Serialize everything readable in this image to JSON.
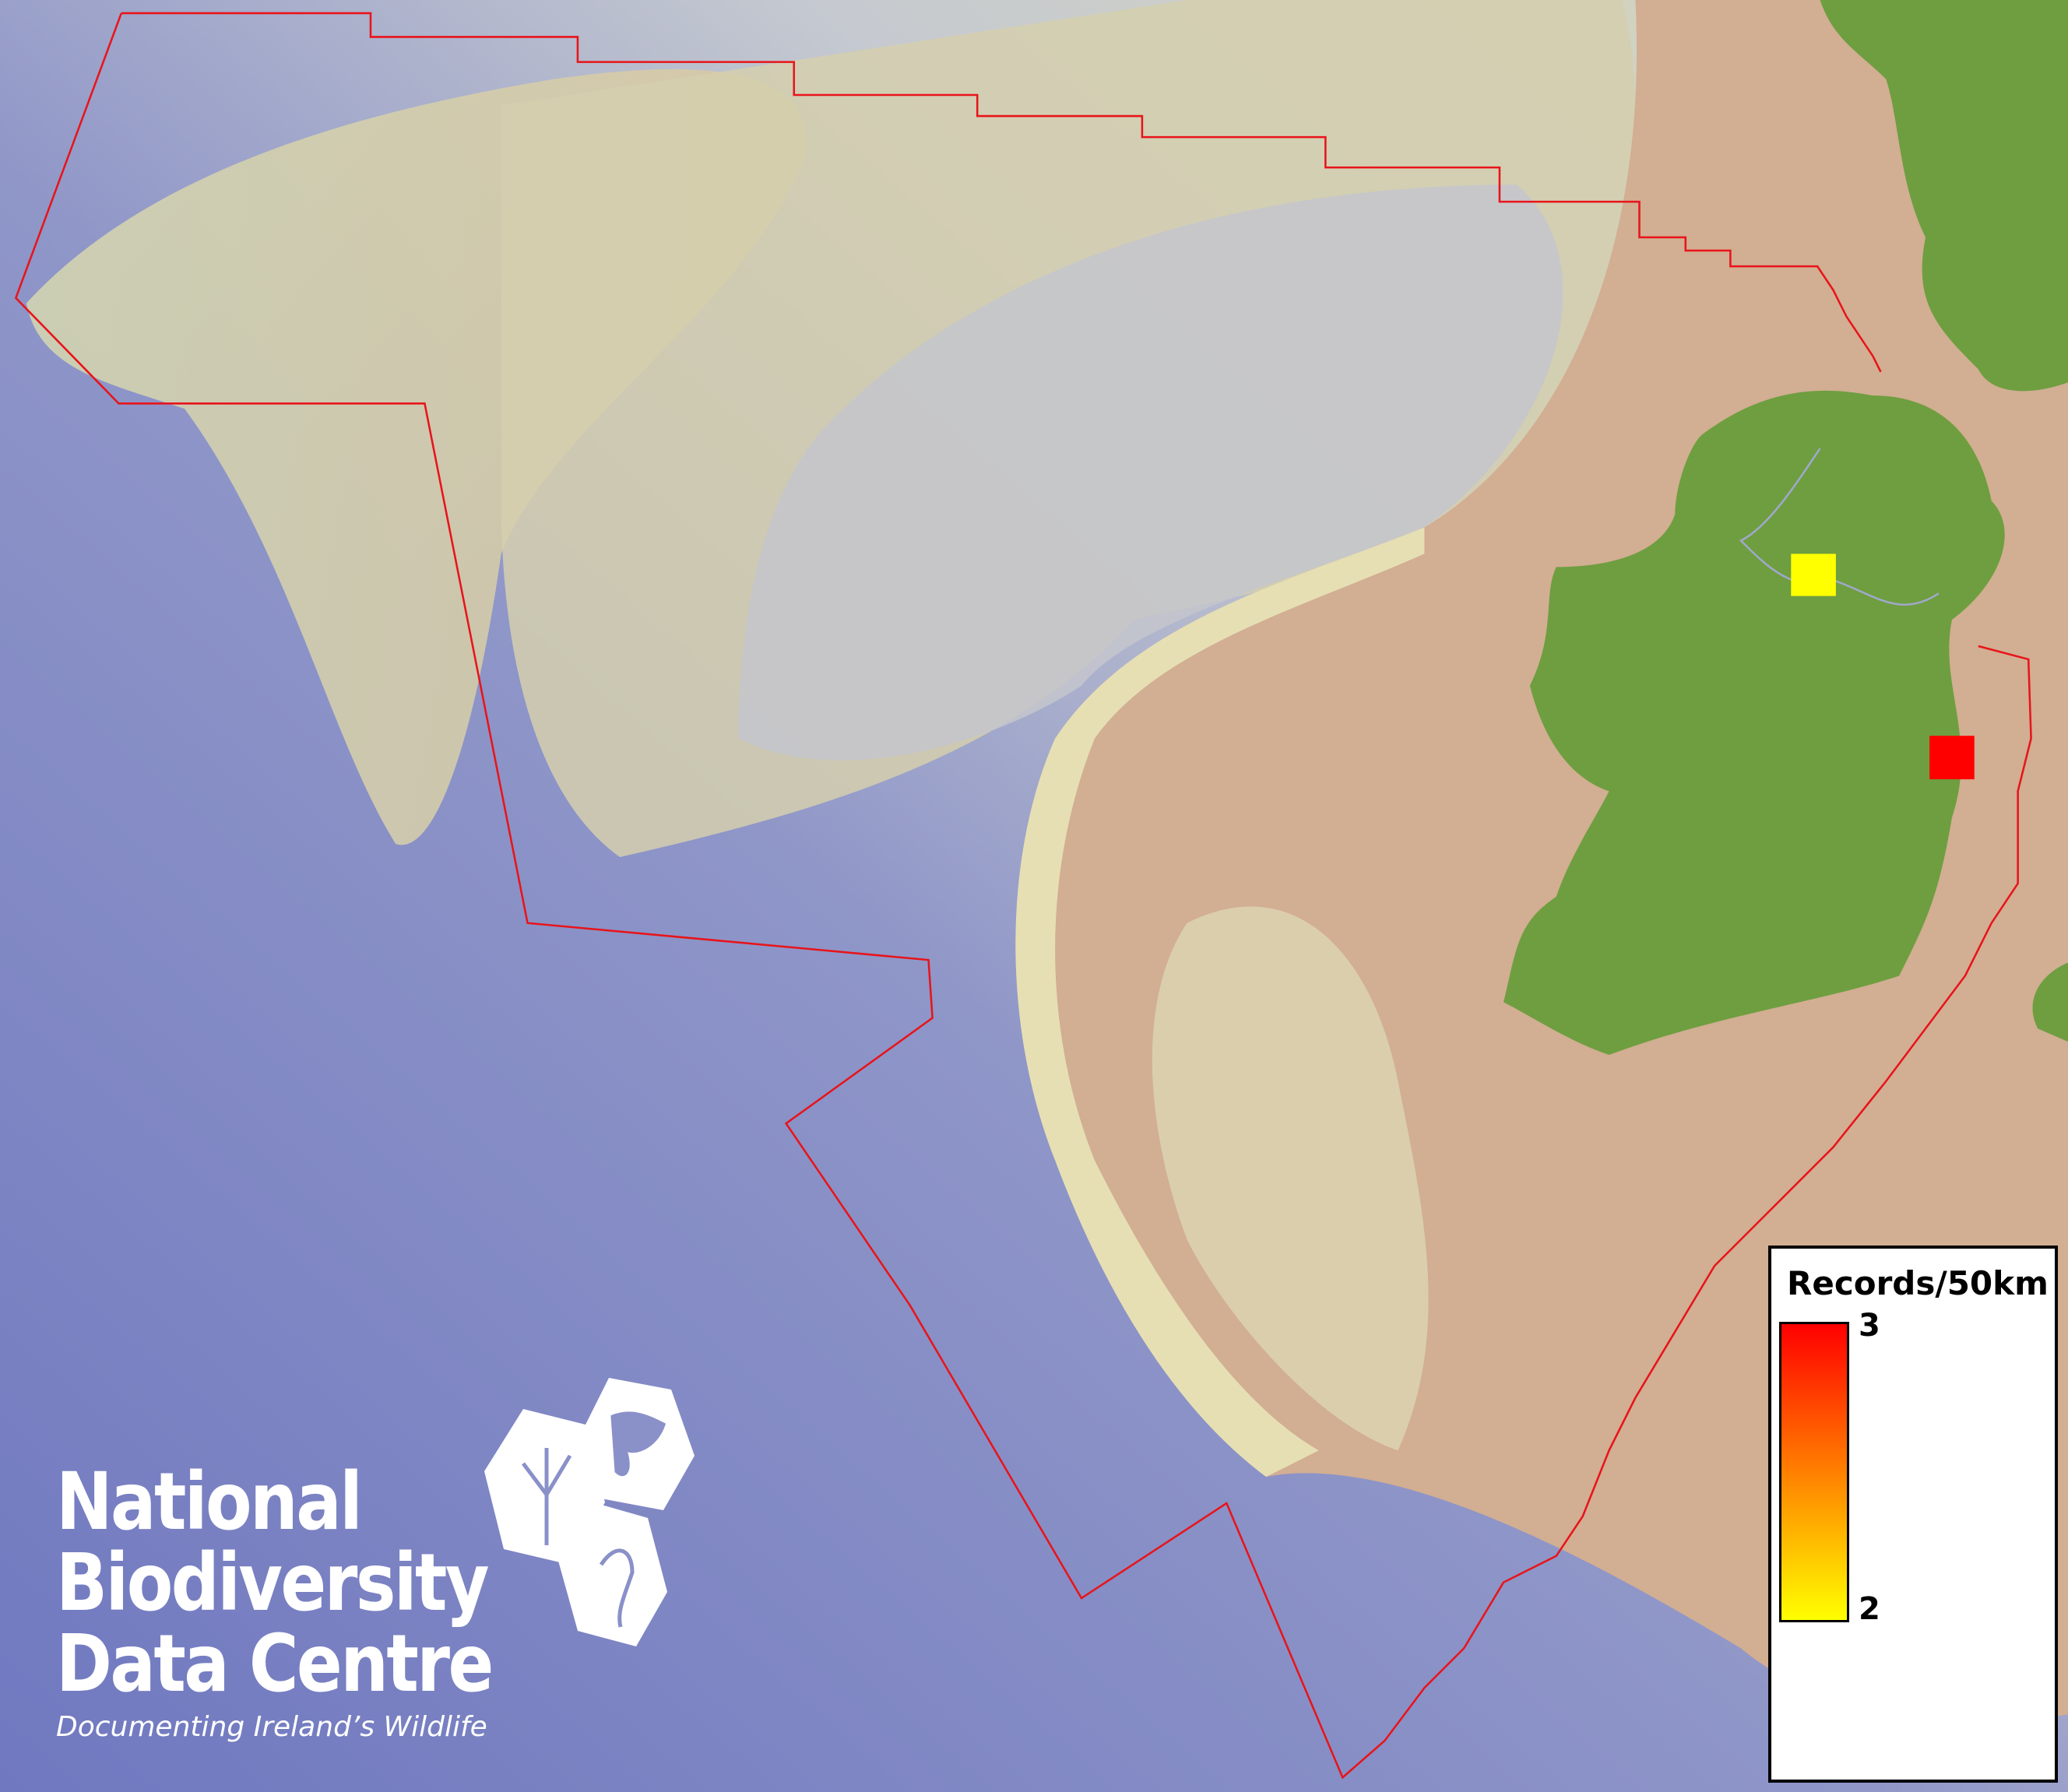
{
  "map": {
    "colors": {
      "deep_sea": "#7f86c4",
      "shelf": "#d8d9b0",
      "shallow": "#cfae92",
      "land": "#6e9e40",
      "boundary": "#e8141a"
    },
    "grid_cells": [
      {
        "value": 2,
        "color": "#ffff00"
      },
      {
        "value": 3,
        "color": "#ff0000"
      }
    ]
  },
  "legend": {
    "title": "Records/50km",
    "max_label": "3",
    "min_label": "2",
    "ramp_colors": [
      "#ff0000",
      "#ff8000",
      "#ffff00"
    ]
  },
  "logo": {
    "line1": "National",
    "line2": "Biodiversity",
    "line3": "Data Centre",
    "tagline": "Documenting Ireland’s Wildlife",
    "icons": [
      "tree-icon",
      "butterfly-icon",
      "seahorse-icon"
    ]
  }
}
